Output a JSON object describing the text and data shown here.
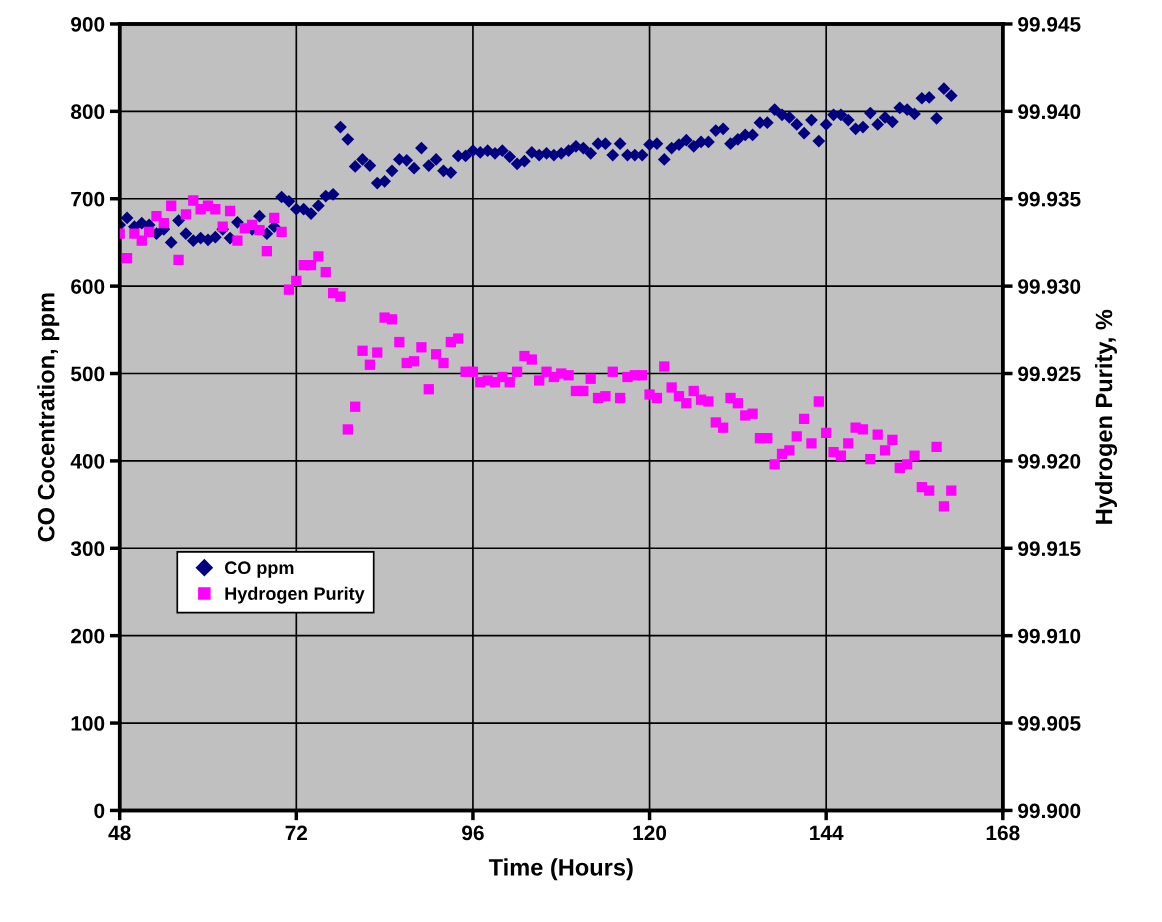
{
  "chart_data": {
    "type": "scatter",
    "xlabel": "Time (Hours)",
    "ylabel": "CO Cocentration, ppm",
    "y2label": "Hydrogen Purity, %",
    "xlim": [
      48,
      168
    ],
    "xticks": [
      48,
      72,
      96,
      120,
      144,
      168
    ],
    "ylim": [
      0,
      900
    ],
    "yticks": [
      0,
      100,
      200,
      300,
      400,
      500,
      600,
      700,
      800,
      900
    ],
    "y2lim": [
      99.9,
      99.945
    ],
    "y2ticks": [
      {
        "value": 99.9,
        "label": "99.900"
      },
      {
        "value": 99.905,
        "label": "99.905"
      },
      {
        "value": 99.91,
        "label": "99.910"
      },
      {
        "value": 99.915,
        "label": "99.915"
      },
      {
        "value": 99.92,
        "label": "99.920"
      },
      {
        "value": 99.925,
        "label": "99.925"
      },
      {
        "value": 99.93,
        "label": "99.930"
      },
      {
        "value": 99.935,
        "label": "99.935"
      },
      {
        "value": 99.94,
        "label": "99.940"
      },
      {
        "value": 99.945,
        "label": "99.945"
      }
    ],
    "grid": true,
    "legend": "lower left",
    "x": [
      48,
      49,
      50,
      51,
      52,
      53,
      54,
      55,
      56,
      57,
      58,
      59,
      60,
      61,
      62,
      63,
      64,
      65,
      66,
      67,
      68,
      69,
      70,
      71,
      72,
      73,
      74,
      75,
      76,
      77,
      78,
      79,
      80,
      81,
      82,
      83,
      84,
      85,
      86,
      87,
      88,
      89,
      90,
      91,
      92,
      93,
      94,
      95,
      96,
      97,
      98,
      99,
      100,
      101,
      102,
      103,
      104,
      105,
      106,
      107,
      108,
      109,
      110,
      111,
      112,
      113,
      114,
      115,
      116,
      117,
      118,
      119,
      120,
      121,
      122,
      123,
      124,
      125,
      126,
      127,
      128,
      129,
      130,
      131,
      132,
      133,
      134,
      135,
      136,
      137,
      138,
      139,
      140,
      141,
      142,
      143,
      144,
      145,
      146,
      147,
      148,
      149,
      150,
      151,
      152,
      153,
      154,
      155,
      156,
      157,
      158,
      159,
      160,
      161
    ],
    "series": [
      {
        "name": "CO ppm",
        "color": "#000080",
        "marker": "diamond",
        "values": [
          670,
          678,
          668,
          672,
          670,
          660,
          665,
          650,
          675,
          660,
          652,
          655,
          653,
          656,
          665,
          655,
          673,
          null,
          665,
          680,
          660,
          668,
          702,
          697,
          688,
          688,
          683,
          692,
          703,
          705,
          782,
          768,
          737,
          745,
          738,
          718,
          720,
          732,
          745,
          744,
          735,
          758,
          738,
          745,
          732,
          730,
          749,
          749,
          755,
          753,
          755,
          752,
          755,
          748,
          740,
          743,
          753,
          750,
          752,
          750,
          752,
          755,
          760,
          758,
          752,
          763,
          763,
          750,
          763,
          750,
          750,
          750,
          762,
          763,
          745,
          758,
          762,
          767,
          760,
          765,
          765,
          778,
          780,
          763,
          768,
          773,
          773,
          787,
          787,
          802,
          796,
          793,
          785,
          775,
          790,
          766,
          785,
          796,
          796,
          790,
          780,
          782,
          798,
          785,
          793,
          788,
          804,
          802,
          797,
          815,
          816,
          792,
          826,
          818
        ]
      },
      {
        "name": "Hydrogen Purity",
        "color": "#ff00ff",
        "marker": "square",
        "axis": "y2",
        "values": [
          99.933,
          99.9316,
          99.933,
          99.9326,
          99.9331,
          99.934,
          99.9336,
          99.9346,
          99.9315,
          99.9341,
          99.9349,
          99.9344,
          99.9346,
          99.9344,
          99.9334,
          99.9343,
          99.9326,
          99.9333,
          99.9335,
          99.9332,
          99.932,
          99.9339,
          99.9331,
          99.9298,
          99.9303,
          99.9312,
          99.9312,
          99.9317,
          99.9308,
          99.9296,
          99.9294,
          99.9218,
          99.9231,
          99.9263,
          99.9255,
          99.9262,
          99.9282,
          99.9281,
          99.9268,
          99.9256,
          99.9257,
          99.9265,
          99.9241,
          99.9261,
          99.9256,
          99.9268,
          99.927,
          99.9251,
          99.9251,
          99.9245,
          99.9246,
          99.9245,
          99.9248,
          99.9245,
          99.9251,
          99.926,
          99.9258,
          99.9246,
          99.9251,
          99.9248,
          99.925,
          99.9249,
          99.924,
          99.924,
          99.9247,
          99.9236,
          99.9237,
          99.9251,
          99.9236,
          99.9248,
          99.9249,
          99.9249,
          99.9238,
          99.9236,
          99.9254,
          99.9242,
          99.9237,
          99.9233,
          99.924,
          99.9235,
          99.9234,
          99.9222,
          99.9219,
          99.9236,
          99.9233,
          99.9226,
          99.9227,
          99.9213,
          99.9213,
          99.9198,
          99.9204,
          99.9206,
          99.9214,
          99.9224,
          99.921,
          99.9234,
          99.9216,
          99.9205,
          99.9203,
          99.921,
          99.9219,
          99.9218,
          99.9201,
          99.9215,
          99.9206,
          99.9212,
          99.9196,
          99.9198,
          99.9203,
          99.9185,
          99.9183,
          99.9208,
          99.9174,
          99.9183
        ]
      }
    ]
  }
}
